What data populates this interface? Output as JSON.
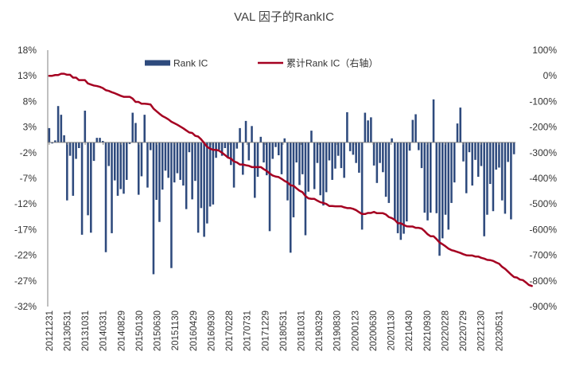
{
  "chart_data": {
    "type": "bar",
    "title": "VAL 因子的RankIC",
    "legend": {
      "placement": "top",
      "entries": [
        "Rank IC",
        "累计Rank IC（右轴）"
      ]
    },
    "colors": {
      "bar": "#2E4A7D",
      "line": "#A50021",
      "axis": "#808080"
    },
    "y_left": {
      "ylim": [
        -32,
        18
      ],
      "ticks": [
        18,
        13,
        8,
        3,
        -2,
        -7,
        -12,
        -17,
        -22,
        -27,
        -32
      ],
      "tick_labels": [
        "18%",
        "13%",
        "8%",
        "3%",
        "-2%",
        "-7%",
        "-12%",
        "-17%",
        "-22%",
        "-27%",
        "-32%"
      ]
    },
    "y_right": {
      "ylim": [
        -900,
        100
      ],
      "ticks": [
        100,
        0,
        -100,
        -200,
        -300,
        -400,
        -500,
        -600,
        -700,
        -800,
        -900
      ],
      "tick_labels": [
        "100%",
        "0%",
        "-100%",
        "-200%",
        "-300%",
        "-400%",
        "-500%",
        "-600%",
        "-700%",
        "-800%",
        "-900%"
      ]
    },
    "x_tick_labels": [
      "20121231",
      "20130531",
      "20131031",
      "20140331",
      "20140829",
      "20150130",
      "20150630",
      "20151130",
      "20160429",
      "20160930",
      "20170228",
      "20170731",
      "20171229",
      "20180531",
      "20181031",
      "20190329",
      "20190830",
      "20200123",
      "20200630",
      "20201130",
      "20210430",
      "20210930",
      "20220228",
      "20220729",
      "20221230",
      "20230531"
    ],
    "series": [
      {
        "name": "Rank IC",
        "type": "bar",
        "values": [
          2.8,
          -0.2,
          0.4,
          7.1,
          5.4,
          1.4,
          -11.3,
          -2.6,
          -10.4,
          -3.2,
          -1.1,
          -18.0,
          6.2,
          -14.2,
          -17.6,
          -3.6,
          0.9,
          0.9,
          0.3,
          -21.4,
          -4.6,
          -17.7,
          -7.4,
          -10.4,
          -9.1,
          -10.0,
          -7.3,
          -0.3,
          5.8,
          3.8,
          -10.2,
          -6.6,
          5.4,
          -8.8,
          -1.5,
          -25.7,
          -11.2,
          -15.5,
          -9.2,
          -5.5,
          -6.9,
          -24.5,
          -7.8,
          -6.0,
          -7.3,
          -8.4,
          -13.0,
          -1.9,
          -11.1,
          -7.5,
          -17.6,
          -12.8,
          -18.4,
          -15.8,
          -12.5,
          -12.1,
          -3.0,
          -1.4,
          -2.6,
          -1.1,
          -2.9,
          -4.4,
          -8.8,
          -1.2,
          2.8,
          -6.3,
          4.2,
          -3.5,
          3.2,
          -10.8,
          -6.7,
          1.1,
          -3.9,
          -6.4,
          -17.3,
          -3.2,
          -0.9,
          -2.5,
          -6.2,
          0.8,
          -11.3,
          -21.5,
          -14.6,
          -3.9,
          -8.3,
          -6.2,
          -18.1,
          -9.6,
          2.3,
          -9.1,
          -4.0,
          -10.3,
          -12.3,
          -9.7,
          -3.5,
          -7.3,
          -5.1,
          -2.6,
          -5.0,
          -6.9,
          5.9,
          -1.7,
          -2.4,
          -4.0,
          -5.9,
          -17.0,
          5.8,
          4.3,
          4.9,
          -4.5,
          -7.9,
          -4.0,
          -5.8,
          -10.6,
          -11.8,
          0.8,
          -15.2,
          -17.7,
          -19.0,
          -17.8,
          -15.4,
          -1.6,
          4.4,
          5.5,
          -1.5,
          -5.0,
          -13.7,
          -15.2,
          -13.7,
          8.4,
          -13.8,
          -22.1,
          -18.7,
          -14.1,
          -17.0,
          -11.8,
          -7.8,
          3.7,
          6.8,
          -3.7,
          -9.9,
          -1.9,
          -8.4,
          -3.4,
          -6.7,
          -4.6,
          -18.3,
          -14.1,
          -8.1,
          -13.4,
          -5.3,
          -4.9,
          -11.3,
          -13.9,
          -3.8,
          -15.0,
          -2.3
        ]
      },
      {
        "name": "累计Rank IC（右轴）",
        "type": "line",
        "values": [
          0,
          0,
          3,
          3,
          8,
          8,
          4,
          4,
          -7,
          -7,
          -17,
          -17,
          -17,
          -30,
          -34,
          -38,
          -40,
          -43,
          -48,
          -56,
          -59,
          -64,
          -68,
          -73,
          -78,
          -82,
          -82,
          -82,
          -89,
          -102,
          -102,
          -109,
          -109,
          -110,
          -112,
          -128,
          -138,
          -148,
          -157,
          -163,
          -170,
          -179,
          -185,
          -191,
          -198,
          -205,
          -213,
          -221,
          -223,
          -234,
          -237,
          -248,
          -262,
          -277,
          -284,
          -289,
          -289,
          -292,
          -300,
          -309,
          -319,
          -323,
          -334,
          -338,
          -346,
          -346,
          -349,
          -351,
          -356,
          -356,
          -356,
          -356,
          -364,
          -371,
          -381,
          -389,
          -393,
          -395,
          -402,
          -410,
          -416,
          -427,
          -429,
          -439,
          -448,
          -454,
          -469,
          -478,
          -480,
          -480,
          -487,
          -493,
          -496,
          -500,
          -508,
          -508,
          -509,
          -509,
          -509,
          -513,
          -516,
          -516,
          -519,
          -524,
          -532,
          -539,
          -539,
          -535,
          -535,
          -531,
          -536,
          -536,
          -536,
          -541,
          -551,
          -555,
          -562,
          -575,
          -575,
          -582,
          -587,
          -588,
          -588,
          -593,
          -593,
          -596,
          -606,
          -618,
          -626,
          -626,
          -637,
          -650,
          -657,
          -665,
          -674,
          -680,
          -683,
          -687,
          -691,
          -696,
          -700,
          -701,
          -701,
          -705,
          -705,
          -710,
          -713,
          -718,
          -719,
          -722,
          -728,
          -733,
          -745,
          -753,
          -764,
          -775,
          -785,
          -787,
          -795,
          -797,
          -806,
          -816,
          -820
        ]
      }
    ]
  }
}
